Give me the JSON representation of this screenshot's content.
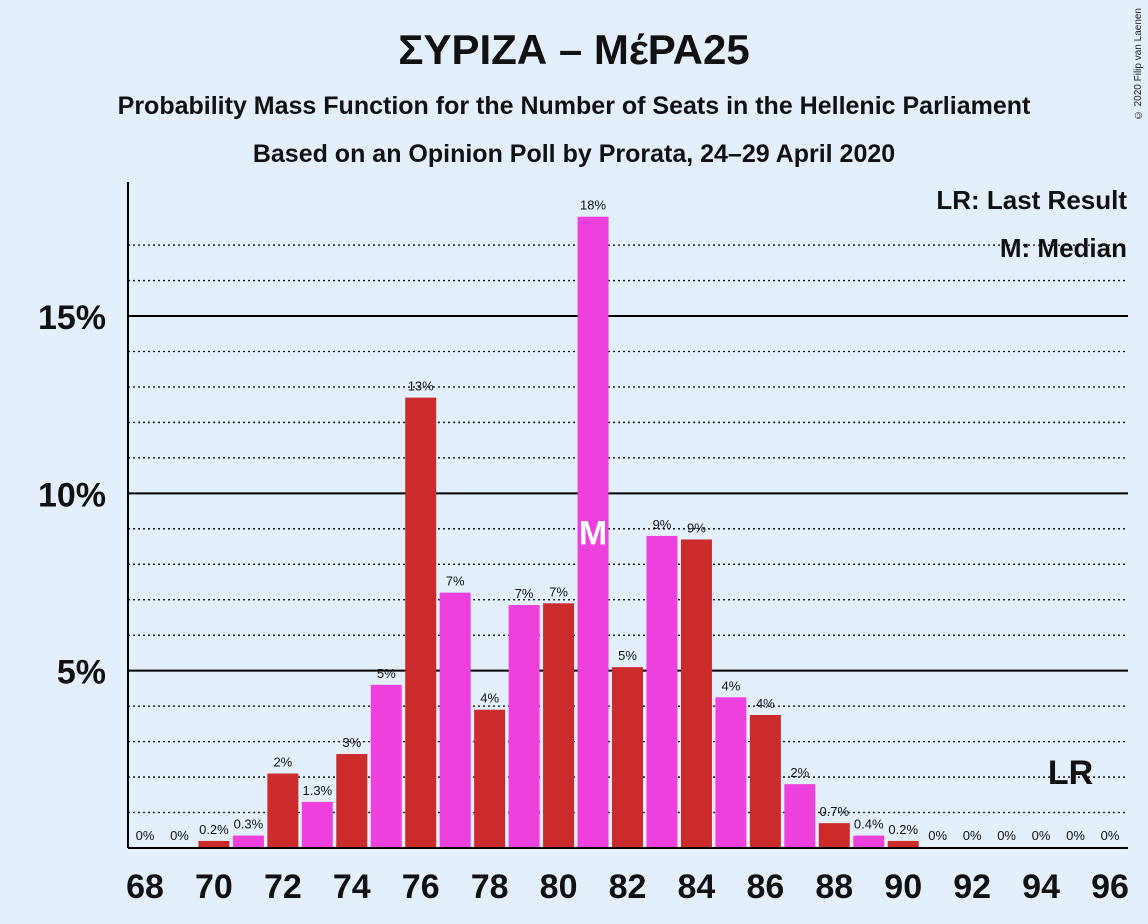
{
  "chart_data": {
    "type": "bar",
    "title": "ΣΥΡΙΖΑ – ΜέΡΑ25",
    "subtitle": "Probability Mass Function for the Number of Seats in the Hellenic Parliament",
    "subtitle2": "Based on an Opinion Poll by Prorata, 24–29 April 2020",
    "legend": [
      "LR: Last Result",
      "M: Median"
    ],
    "copyright": "© 2020 Filip van Laenen",
    "x": [
      68,
      69,
      70,
      71,
      72,
      73,
      74,
      75,
      76,
      77,
      78,
      79,
      80,
      81,
      82,
      83,
      84,
      85,
      86,
      87,
      88,
      89,
      90,
      91,
      92,
      93,
      94,
      95,
      96
    ],
    "values": [
      0,
      0,
      0.2,
      0.35,
      2.1,
      1.3,
      2.65,
      4.6,
      12.7,
      7.2,
      3.9,
      6.85,
      6.9,
      17.8,
      5.1,
      8.8,
      8.7,
      4.25,
      3.75,
      1.8,
      0.7,
      0.35,
      0.2,
      0,
      0,
      0,
      0,
      0,
      0
    ],
    "labels": [
      "0%",
      "0%",
      "0.2%",
      "0.3%",
      "2%",
      "1.3%",
      "3%",
      "5%",
      "13%",
      "7%",
      "4%",
      "7%",
      "7%",
      "18%",
      "5%",
      "9%",
      "9%",
      "4%",
      "4%",
      "2%",
      "0.7%",
      "0.4%",
      "0.2%",
      "0%",
      "0%",
      "0%",
      "0%",
      "0%",
      "0%"
    ],
    "x_tick_labels": [
      "68",
      "70",
      "72",
      "74",
      "76",
      "78",
      "80",
      "82",
      "84",
      "86",
      "88",
      "90",
      "92",
      "94",
      "96"
    ],
    "y_tick_labels": [
      "5%",
      "10%",
      "15%"
    ],
    "ylim": [
      0,
      19.4
    ],
    "median_seat": 81,
    "median_marker": "M",
    "last_result_seat": 95,
    "last_result_marker": "LR",
    "colors": {
      "odd_bar": "#ee40dd",
      "even_bar": "#cc2b2b",
      "background": "#e3f0fc"
    }
  }
}
